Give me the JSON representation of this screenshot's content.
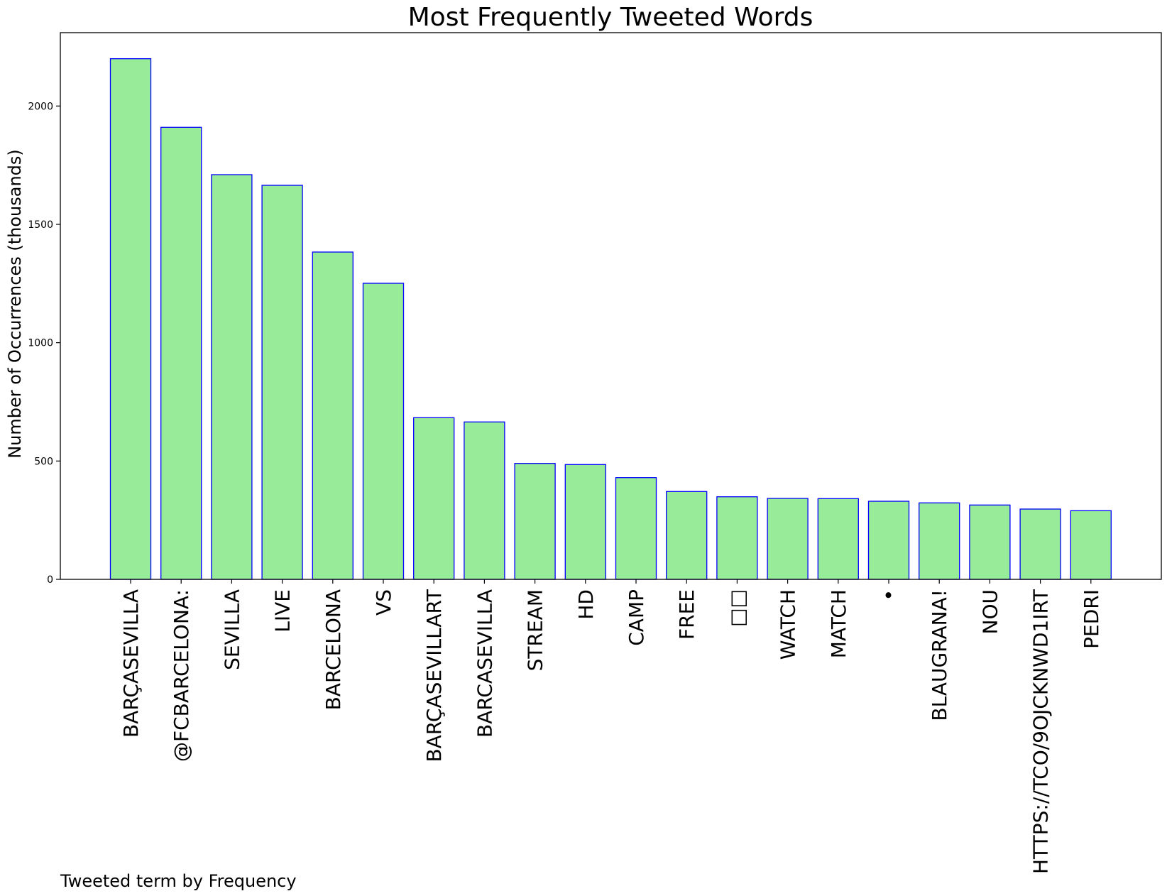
{
  "chart_data": {
    "type": "bar",
    "title": "Most Frequently Tweeted Words",
    "xlabel": "Tweeted term by Frequency",
    "ylabel": "Number of Occurrences (thousands)",
    "categories": [
      "BARÇASEVILLA",
      "@FCBARCELONA:",
      "SEVILLA",
      "LIVE",
      "BARCELONA",
      "VS",
      "BARÇASEVILLART",
      "BARCASEVILLA",
      "STREAM",
      "HD",
      "CAMP",
      "FREE",
      "□□",
      "WATCH",
      "MATCH",
      "•",
      "BLAUGRANA!",
      "NOU",
      "HTTPS://TCO/9OJCKNWD1IRT",
      "PEDRI"
    ],
    "values": [
      2200,
      1910,
      1710,
      1665,
      1383,
      1251,
      683,
      665,
      490,
      485,
      430,
      371,
      349,
      342,
      341,
      330,
      323,
      314,
      297,
      290
    ],
    "ylim": [
      0,
      2310
    ],
    "yticks": [
      0,
      500,
      1000,
      1500,
      2000
    ],
    "grid": false,
    "colors": {
      "bar_fill": "#98eb98",
      "bar_edge": "#0000ff",
      "axis": "#000000"
    }
  }
}
